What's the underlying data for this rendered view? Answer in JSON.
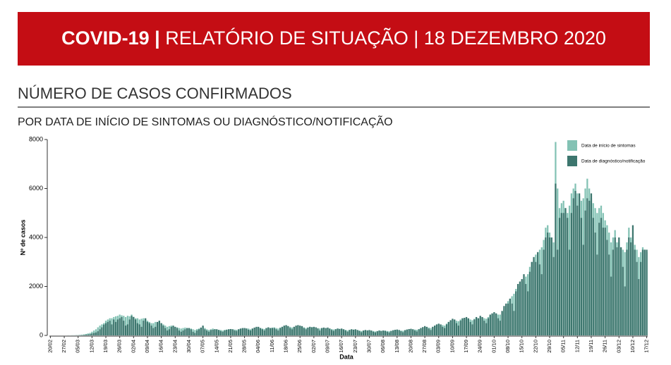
{
  "header": {
    "title_bold": "COVID-19 |",
    "title": "RELATÓRIO DE SITUAÇÃO | 18 DEZEMBRO 2020"
  },
  "chart_data": {
    "type": "bar",
    "title": "NÚMERO DE CASOS CONFIRMADOS",
    "subtitle": "POR DATA DE INÍCIO DE SINTOMAS OU DIAGNÓSTICO/NOTIFICAÇÃO",
    "xlabel": "Data",
    "ylabel": "Nº de casos",
    "ylim": [
      0,
      8000
    ],
    "yticks": [
      0,
      2000,
      4000,
      6000,
      8000
    ],
    "grid": false,
    "legend": "top-right",
    "categories": [
      "20/02",
      null,
      null,
      null,
      null,
      null,
      null,
      "27/02",
      null,
      null,
      null,
      null,
      null,
      null,
      "05/03",
      null,
      null,
      null,
      null,
      null,
      null,
      "12/03",
      null,
      null,
      null,
      null,
      null,
      null,
      "19/03",
      null,
      null,
      null,
      null,
      null,
      null,
      "26/03",
      null,
      null,
      null,
      null,
      null,
      null,
      "02/04",
      null,
      null,
      null,
      null,
      null,
      null,
      "09/04",
      null,
      null,
      null,
      null,
      null,
      null,
      "16/04",
      null,
      null,
      null,
      null,
      null,
      null,
      "23/04",
      null,
      null,
      null,
      null,
      null,
      null,
      "30/04",
      null,
      null,
      null,
      null,
      null,
      null,
      "07/05",
      null,
      null,
      null,
      null,
      null,
      null,
      "14/05",
      null,
      null,
      null,
      null,
      null,
      null,
      "21/05",
      null,
      null,
      null,
      null,
      null,
      null,
      "28/05",
      null,
      null,
      null,
      null,
      null,
      null,
      "04/06",
      null,
      null,
      null,
      null,
      null,
      null,
      "11/06",
      null,
      null,
      null,
      null,
      null,
      null,
      "18/06",
      null,
      null,
      null,
      null,
      null,
      null,
      "25/06",
      null,
      null,
      null,
      null,
      null,
      null,
      "02/07",
      null,
      null,
      null,
      null,
      null,
      null,
      "09/07",
      null,
      null,
      null,
      null,
      null,
      null,
      "16/07",
      null,
      null,
      null,
      null,
      null,
      null,
      "23/07",
      null,
      null,
      null,
      null,
      null,
      null,
      "30/07",
      null,
      null,
      null,
      null,
      null,
      null,
      "06/08",
      null,
      null,
      null,
      null,
      null,
      null,
      "13/08",
      null,
      null,
      null,
      null,
      null,
      null,
      "20/08",
      null,
      null,
      null,
      null,
      null,
      null,
      "27/08",
      null,
      null,
      null,
      null,
      null,
      null,
      "03/09",
      null,
      null,
      null,
      null,
      null,
      null,
      "10/09",
      null,
      null,
      null,
      null,
      null,
      null,
      "17/09",
      null,
      null,
      null,
      null,
      null,
      null,
      "24/09",
      null,
      null,
      null,
      null,
      null,
      null,
      "01/10",
      null,
      null,
      null,
      null,
      null,
      null,
      "08/10",
      null,
      null,
      null,
      null,
      null,
      null,
      "15/10",
      null,
      null,
      null,
      null,
      null,
      null,
      "22/10",
      null,
      null,
      null,
      null,
      null,
      null,
      "29/10",
      null,
      null,
      null,
      null,
      null,
      null,
      "05/11",
      null,
      null,
      null,
      null,
      null,
      null,
      "12/11",
      null,
      null,
      null,
      null,
      null,
      null,
      "19/11",
      null,
      null,
      null,
      null,
      null,
      null,
      "26/11",
      null,
      null,
      null,
      null,
      null,
      null,
      "03/12",
      null,
      null,
      null,
      null,
      null,
      null,
      "10/12",
      null,
      null,
      null,
      null,
      null,
      null,
      "17/12"
    ],
    "series": [
      {
        "name": "Data de início de sintomas",
        "color": "#83c2b4",
        "values": [
          0,
          0,
          0,
          0,
          0,
          0,
          0,
          0,
          0,
          2,
          3,
          5,
          6,
          8,
          10,
          20,
          30,
          40,
          60,
          80,
          100,
          150,
          200,
          250,
          330,
          400,
          450,
          500,
          600,
          650,
          700,
          700,
          750,
          780,
          800,
          850,
          820,
          800,
          750,
          800,
          780,
          850,
          760,
          700,
          700,
          650,
          680,
          700,
          650,
          600,
          550,
          500,
          500,
          550,
          520,
          600,
          500,
          450,
          400,
          350,
          380,
          400,
          380,
          350,
          330,
          300,
          280,
          300,
          320,
          300,
          300,
          280,
          250,
          220,
          260,
          280,
          300,
          350,
          300,
          250,
          220,
          250,
          280,
          260,
          250,
          230,
          220,
          200,
          230,
          240,
          250,
          260,
          250,
          240,
          230,
          250,
          270,
          280,
          300,
          290,
          280,
          250,
          280,
          300,
          320,
          330,
          300,
          280,
          260,
          300,
          320,
          300,
          320,
          330,
          300,
          280,
          320,
          350,
          380,
          400,
          380,
          350,
          320,
          350,
          380,
          400,
          380,
          360,
          330,
          300,
          320,
          350,
          340,
          330,
          320,
          300,
          280,
          300,
          310,
          300,
          300,
          280,
          260,
          240,
          260,
          280,
          270,
          260,
          250,
          230,
          200,
          230,
          250,
          240,
          230,
          220,
          200,
          180,
          200,
          220,
          210,
          200,
          190,
          180,
          160,
          180,
          200,
          190,
          200,
          190,
          180,
          170,
          190,
          210,
          220,
          230,
          220,
          200,
          190,
          220,
          240,
          250,
          260,
          250,
          240,
          230,
          260,
          300,
          320,
          350,
          340,
          320,
          300,
          350,
          400,
          420,
          450,
          440,
          420,
          400,
          480,
          550,
          600,
          650,
          620,
          600,
          580,
          650,
          700,
          680,
          700,
          680,
          650,
          620,
          680,
          720,
          700,
          750,
          720,
          700,
          680,
          750,
          800,
          850,
          900,
          880,
          850,
          850,
          950,
          1100,
          1200,
          1400,
          1500,
          1600,
          1700,
          1900,
          2000,
          2100,
          2200,
          2300,
          2400,
          2500,
          2800,
          3000,
          3100,
          3300,
          3400,
          3500,
          3600,
          3900,
          4400,
          4500,
          4200,
          4000,
          3800,
          7900,
          6000,
          5200,
          5400,
          5500,
          5200,
          5000,
          5300,
          5800,
          6000,
          6200,
          5800,
          5700,
          5500,
          5600,
          6000,
          6400,
          6000,
          5600,
          5400,
          5200,
          5000,
          5200,
          5300,
          5000,
          4700,
          4500,
          4200,
          3800,
          4000,
          4300,
          3800,
          3800,
          3600,
          3500,
          3400,
          3800,
          4400,
          4000,
          3900,
          3700,
          3500,
          3200,
          3400,
          3600,
          3500,
          3400
        ]
      },
      {
        "name": "Data de diagnóstico/notificação",
        "color": "#3d766e",
        "values": [
          0,
          0,
          0,
          0,
          0,
          0,
          0,
          0,
          0,
          2,
          0,
          2,
          1,
          4,
          5,
          8,
          10,
          20,
          30,
          40,
          50,
          80,
          100,
          120,
          170,
          250,
          330,
          440,
          500,
          550,
          600,
          450,
          650,
          550,
          650,
          700,
          750,
          600,
          400,
          450,
          650,
          800,
          750,
          650,
          500,
          450,
          350,
          600,
          700,
          550,
          500,
          400,
          300,
          350,
          550,
          600,
          500,
          400,
          300,
          200,
          250,
          350,
          400,
          350,
          300,
          200,
          150,
          200,
          250,
          300,
          300,
          250,
          150,
          100,
          200,
          250,
          320,
          400,
          250,
          200,
          150,
          220,
          230,
          250,
          250,
          220,
          180,
          150,
          200,
          230,
          250,
          260,
          250,
          200,
          180,
          250,
          280,
          300,
          300,
          280,
          230,
          200,
          280,
          320,
          350,
          350,
          300,
          250,
          200,
          300,
          330,
          300,
          300,
          300,
          250,
          200,
          300,
          350,
          400,
          420,
          380,
          300,
          250,
          350,
          400,
          420,
          400,
          380,
          300,
          250,
          320,
          350,
          330,
          350,
          330,
          280,
          200,
          300,
          320,
          300,
          320,
          280,
          220,
          180,
          250,
          280,
          260,
          280,
          250,
          200,
          150,
          220,
          250,
          230,
          250,
          220,
          180,
          130,
          200,
          220,
          200,
          220,
          200,
          150,
          120,
          170,
          200,
          180,
          200,
          190,
          150,
          120,
          180,
          210,
          230,
          240,
          220,
          170,
          130,
          210,
          240,
          260,
          270,
          250,
          200,
          160,
          250,
          300,
          340,
          380,
          350,
          280,
          220,
          350,
          400,
          450,
          480,
          450,
          350,
          300,
          450,
          550,
          620,
          680,
          650,
          500,
          400,
          600,
          700,
          720,
          750,
          700,
          550,
          450,
          650,
          750,
          700,
          800,
          750,
          600,
          500,
          700,
          850,
          900,
          950,
          900,
          700,
          600,
          1000,
          1200,
          1300,
          1300,
          1500,
          1300,
          1000,
          1800,
          2100,
          2200,
          2300,
          2500,
          2100,
          1800,
          2600,
          3000,
          3200,
          3000,
          3400,
          2900,
          2500,
          3500,
          4000,
          4200,
          4000,
          4000,
          3200,
          6200,
          3500,
          4800,
          5000,
          5000,
          5200,
          4800,
          3500,
          5000,
          5600,
          5900,
          5300,
          5800,
          4800,
          3700,
          5100,
          5600,
          5500,
          5800,
          4800,
          4200,
          3300,
          4600,
          4800,
          4400,
          4400,
          3900,
          3300,
          2400,
          3500,
          4000,
          3600,
          4000,
          3600,
          2800,
          2000,
          3500,
          4000,
          3800,
          4500,
          3500,
          3000,
          2300,
          3000,
          3500,
          3500,
          3500
        ]
      }
    ]
  }
}
